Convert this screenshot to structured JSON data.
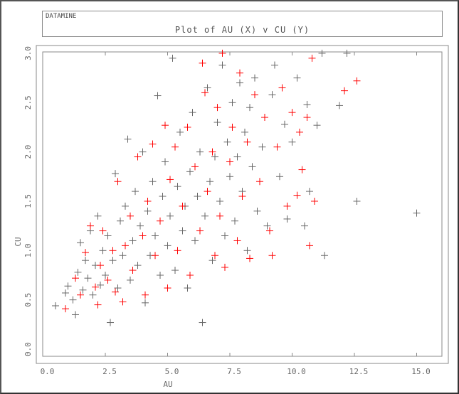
{
  "header": {
    "app": "DATAMINE",
    "title": "Plot of AU (X) v CU (Y)"
  },
  "chart_data": {
    "type": "scatter",
    "title": "Plot of AU (X) v CU (Y)",
    "xlabel": "AU",
    "ylabel": "CU",
    "xlim": [
      0,
      15.8
    ],
    "ylim": [
      0,
      3.05
    ],
    "xticks": [
      "0.0",
      "2.5",
      "5.0",
      "7.5",
      "10.0",
      "12.5",
      "15.0"
    ],
    "yticks": [
      "0.0",
      "0.5",
      "1.0",
      "1.5",
      "2.0",
      "2.5",
      "3.0"
    ],
    "grid": false,
    "marker": "plus",
    "series": [
      {
        "color": "#666666",
        "points": [
          [
            0.5,
            0.44
          ],
          [
            0.9,
            0.57
          ],
          [
            1.0,
            0.64
          ],
          [
            1.2,
            0.5
          ],
          [
            1.3,
            0.35
          ],
          [
            1.4,
            0.78
          ],
          [
            1.5,
            1.08
          ],
          [
            1.6,
            0.6
          ],
          [
            1.7,
            0.9
          ],
          [
            1.8,
            0.72
          ],
          [
            1.9,
            1.2
          ],
          [
            2.0,
            0.55
          ],
          [
            2.1,
            0.85
          ],
          [
            2.2,
            1.35
          ],
          [
            2.3,
            0.65
          ],
          [
            2.4,
            1.0
          ],
          [
            2.5,
            0.75
          ],
          [
            2.6,
            1.15
          ],
          [
            2.7,
            0.27
          ],
          [
            2.8,
            0.9
          ],
          [
            2.9,
            1.78
          ],
          [
            3.0,
            0.62
          ],
          [
            3.1,
            1.3
          ],
          [
            3.2,
            0.95
          ],
          [
            3.3,
            1.45
          ],
          [
            3.4,
            2.13
          ],
          [
            3.5,
            0.7
          ],
          [
            3.6,
            1.1
          ],
          [
            3.7,
            1.6
          ],
          [
            3.8,
            0.85
          ],
          [
            3.9,
            1.25
          ],
          [
            4.0,
            2.0
          ],
          [
            4.1,
            0.47
          ],
          [
            4.2,
            1.4
          ],
          [
            4.3,
            0.95
          ],
          [
            4.4,
            1.7
          ],
          [
            4.5,
            1.15
          ],
          [
            4.6,
            2.57
          ],
          [
            4.7,
            0.75
          ],
          [
            4.8,
            1.55
          ],
          [
            4.9,
            1.9
          ],
          [
            5.0,
            1.05
          ],
          [
            5.1,
            1.35
          ],
          [
            5.2,
            2.95
          ],
          [
            5.3,
            0.8
          ],
          [
            5.4,
            1.65
          ],
          [
            5.5,
            2.2
          ],
          [
            5.6,
            1.2
          ],
          [
            5.7,
            1.45
          ],
          [
            5.8,
            0.62
          ],
          [
            5.9,
            1.8
          ],
          [
            6.0,
            2.4
          ],
          [
            6.1,
            1.1
          ],
          [
            6.2,
            1.55
          ],
          [
            6.3,
            2.0
          ],
          [
            6.4,
            0.27
          ],
          [
            6.5,
            1.35
          ],
          [
            6.6,
            2.65
          ],
          [
            6.7,
            1.7
          ],
          [
            6.8,
            0.9
          ],
          [
            6.9,
            1.95
          ],
          [
            7.0,
            2.3
          ],
          [
            7.1,
            1.5
          ],
          [
            7.2,
            2.88
          ],
          [
            7.3,
            1.15
          ],
          [
            7.4,
            2.1
          ],
          [
            7.5,
            1.75
          ],
          [
            7.6,
            2.5
          ],
          [
            7.7,
            1.3
          ],
          [
            7.8,
            1.95
          ],
          [
            7.9,
            2.7
          ],
          [
            8.0,
            1.6
          ],
          [
            8.1,
            2.2
          ],
          [
            8.2,
            1.0
          ],
          [
            8.3,
            2.45
          ],
          [
            8.4,
            1.85
          ],
          [
            8.5,
            2.75
          ],
          [
            8.6,
            1.4
          ],
          [
            8.8,
            2.05
          ],
          [
            9.0,
            1.25
          ],
          [
            9.2,
            2.58
          ],
          [
            9.3,
            2.88
          ],
          [
            9.5,
            1.75
          ],
          [
            9.7,
            2.28
          ],
          [
            9.8,
            1.32
          ],
          [
            10.0,
            2.1
          ],
          [
            10.2,
            2.75
          ],
          [
            10.5,
            1.25
          ],
          [
            10.6,
            2.48
          ],
          [
            10.7,
            1.6
          ],
          [
            11.0,
            2.27
          ],
          [
            11.2,
            3.0
          ],
          [
            11.3,
            0.95
          ],
          [
            11.9,
            2.47
          ],
          [
            12.2,
            3.0
          ],
          [
            12.6,
            1.5
          ],
          [
            15.0,
            1.38
          ]
        ]
      },
      {
        "color": "#ff0000",
        "points": [
          [
            0.9,
            0.41
          ],
          [
            1.3,
            0.72
          ],
          [
            1.5,
            0.55
          ],
          [
            1.7,
            0.98
          ],
          [
            1.9,
            1.25
          ],
          [
            2.1,
            0.63
          ],
          [
            2.2,
            0.45
          ],
          [
            2.3,
            0.85
          ],
          [
            2.4,
            1.2
          ],
          [
            2.6,
            0.7
          ],
          [
            2.8,
            1.0
          ],
          [
            2.9,
            0.58
          ],
          [
            3.0,
            1.7
          ],
          [
            3.2,
            0.48
          ],
          [
            3.3,
            1.05
          ],
          [
            3.5,
            1.35
          ],
          [
            3.6,
            0.8
          ],
          [
            3.8,
            1.95
          ],
          [
            4.0,
            1.15
          ],
          [
            4.1,
            0.55
          ],
          [
            4.2,
            1.5
          ],
          [
            4.4,
            2.08
          ],
          [
            4.5,
            0.95
          ],
          [
            4.7,
            1.3
          ],
          [
            4.9,
            2.27
          ],
          [
            5.0,
            0.62
          ],
          [
            5.1,
            1.72
          ],
          [
            5.3,
            2.05
          ],
          [
            5.4,
            1.0
          ],
          [
            5.6,
            1.45
          ],
          [
            5.8,
            2.25
          ],
          [
            5.9,
            0.75
          ],
          [
            6.1,
            1.85
          ],
          [
            6.3,
            1.2
          ],
          [
            6.4,
            2.9
          ],
          [
            6.5,
            2.6
          ],
          [
            6.6,
            1.6
          ],
          [
            6.8,
            2.0
          ],
          [
            6.9,
            0.95
          ],
          [
            7.0,
            2.45
          ],
          [
            7.1,
            1.35
          ],
          [
            7.2,
            3.0
          ],
          [
            7.3,
            0.83
          ],
          [
            7.5,
            1.9
          ],
          [
            7.6,
            2.25
          ],
          [
            7.8,
            1.1
          ],
          [
            7.9,
            2.8
          ],
          [
            8.0,
            1.55
          ],
          [
            8.2,
            2.1
          ],
          [
            8.3,
            0.92
          ],
          [
            8.5,
            2.58
          ],
          [
            8.7,
            1.7
          ],
          [
            8.9,
            2.35
          ],
          [
            9.1,
            1.2
          ],
          [
            9.2,
            0.95
          ],
          [
            9.4,
            2.05
          ],
          [
            9.6,
            2.65
          ],
          [
            9.8,
            1.45
          ],
          [
            10.0,
            2.4
          ],
          [
            10.2,
            1.56
          ],
          [
            10.3,
            2.2
          ],
          [
            10.4,
            1.82
          ],
          [
            10.6,
            2.35
          ],
          [
            10.7,
            1.05
          ],
          [
            10.8,
            2.95
          ],
          [
            10.9,
            1.5
          ],
          [
            12.1,
            2.62
          ],
          [
            12.6,
            2.72
          ]
        ]
      }
    ]
  }
}
